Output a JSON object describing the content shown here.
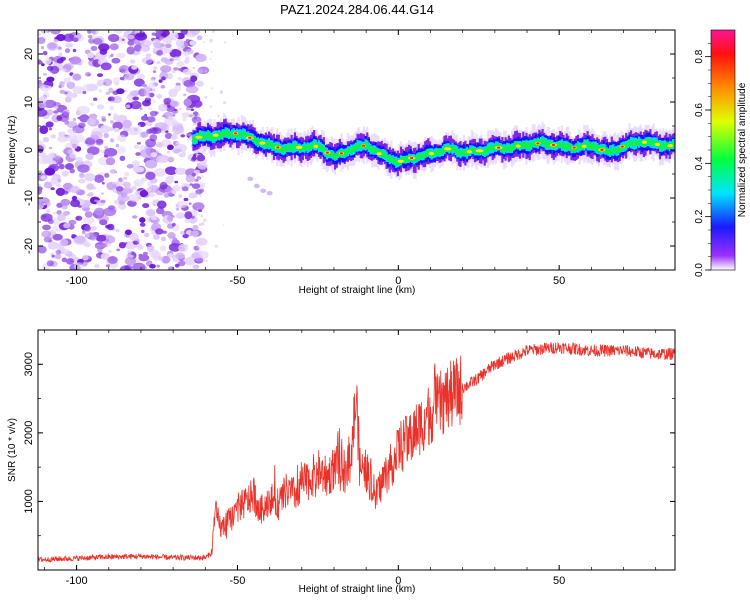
{
  "title": "PAZ1.2024.284.06.44.G14",
  "chart_data": [
    {
      "type": "heatmap",
      "xlabel": "Height of straight line (km)",
      "ylabel": "Frequency (Hz)",
      "xlim": [
        -112,
        86
      ],
      "ylim": [
        -25,
        25
      ],
      "xticks": [
        -100,
        -50,
        0,
        50
      ],
      "xtick_labels": [
        "-100",
        "-50",
        "0",
        "50"
      ],
      "yticks": [
        -20,
        -10,
        0,
        10,
        20
      ],
      "ytick_labels": [
        "-20",
        "-10",
        "0",
        "10",
        "20"
      ],
      "noise_region_x": [
        -112,
        -63
      ],
      "signal_ridge": {
        "x": [
          -64,
          -60,
          -55,
          -50,
          -45,
          -40,
          -35,
          -30,
          -25,
          -20,
          -15,
          -10,
          -5,
          0,
          5,
          10,
          15,
          20,
          25,
          30,
          35,
          40,
          45,
          50,
          55,
          60,
          65,
          70,
          75,
          80,
          86
        ],
        "y": [
          2.5,
          2.8,
          3.2,
          3.5,
          2.2,
          0.8,
          0.3,
          0.6,
          0.8,
          -1.5,
          0.2,
          1.0,
          -1.2,
          -2.5,
          -1.5,
          -0.8,
          0.3,
          -0.5,
          -0.2,
          0.5,
          0.5,
          1.2,
          1.5,
          0.8,
          0.5,
          1.0,
          -0.5,
          0.8,
          1.8,
          1.2,
          0.8
        ]
      },
      "colorbar": {
        "label": "Normalized spectral amplitude",
        "range": [
          0.0,
          0.9
        ],
        "ticks": [
          0.0,
          0.2,
          0.4,
          0.6,
          0.8
        ],
        "tick_labels": [
          "0.0",
          "0.2",
          "0.4",
          "0.6",
          "0.8"
        ],
        "colormap": [
          "#ffffff",
          "#7f00ff",
          "#0000ff",
          "#00ffff",
          "#00ff00",
          "#ffff00",
          "#ff8000",
          "#ff0000",
          "#ff0080"
        ]
      }
    },
    {
      "type": "line",
      "xlabel": "Height of straight line (km)",
      "ylabel": "SNR (10 * v/v)",
      "xlim": [
        -112,
        86
      ],
      "ylim": [
        0,
        3500
      ],
      "xticks": [
        -100,
        -50,
        0,
        50
      ],
      "xtick_labels": [
        "-100",
        "-50",
        "0",
        "50"
      ],
      "yticks": [
        1000,
        2000,
        3000
      ],
      "ytick_labels": [
        "1000",
        "2000",
        "3000"
      ],
      "line_color": "#e8322a",
      "x": [
        -112,
        -100,
        -90,
        -80,
        -70,
        -60,
        -58,
        -57,
        -55,
        -52,
        -50,
        -47,
        -45,
        -43,
        -40,
        -37,
        -35,
        -32,
        -30,
        -28,
        -25,
        -22,
        -20,
        -17,
        -15,
        -13,
        -12,
        -10,
        -8,
        -7,
        -5,
        -2,
        0,
        5,
        10,
        15,
        20,
        25,
        30,
        35,
        40,
        50,
        60,
        70,
        80,
        86
      ],
      "y": [
        150,
        170,
        190,
        200,
        180,
        180,
        250,
        850,
        600,
        750,
        900,
        1000,
        1100,
        850,
        1050,
        950,
        1150,
        1100,
        1250,
        1300,
        1450,
        1350,
        1500,
        1450,
        1650,
        2500,
        1500,
        1450,
        1200,
        1050,
        1300,
        1550,
        1750,
        2000,
        2300,
        2500,
        2650,
        2800,
        3000,
        3100,
        3200,
        3250,
        3200,
        3200,
        3150,
        3150
      ]
    }
  ]
}
